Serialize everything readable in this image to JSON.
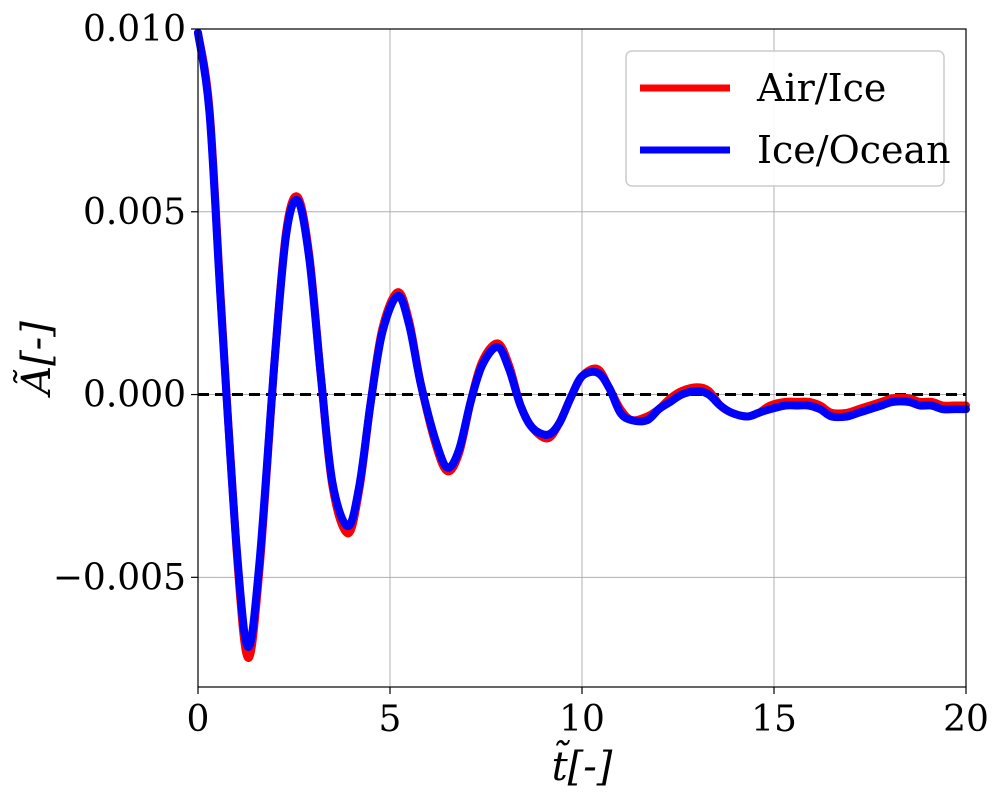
{
  "chart_data": {
    "type": "line",
    "xlabel": "t̃[-]",
    "ylabel": "Ã[-]",
    "xlim": [
      0,
      20
    ],
    "ylim": [
      -0.008,
      0.01
    ],
    "xticks": [
      0,
      5,
      10,
      15,
      20
    ],
    "yticks": [
      -0.005,
      0.0,
      0.005,
      0.01
    ],
    "xtick_labels": [
      "0",
      "5",
      "10",
      "15",
      "20"
    ],
    "ytick_labels": [
      "−0.005",
      "0.000",
      "0.005",
      "0.010"
    ],
    "grid": true,
    "legend_position": "top-right",
    "reference_line": {
      "y": 0.0,
      "style": "dashed",
      "color": "#000000"
    },
    "series": [
      {
        "name": "Air/Ice",
        "color": "#ff0000",
        "x": [
          0.0,
          0.3,
          0.6,
          1.0,
          1.3,
          1.6,
          2.0,
          2.3,
          2.6,
          2.9,
          3.2,
          3.5,
          3.9,
          4.2,
          4.5,
          4.8,
          5.2,
          5.5,
          5.8,
          6.2,
          6.5,
          6.8,
          7.1,
          7.4,
          7.8,
          8.1,
          8.4,
          8.7,
          9.1,
          9.4,
          9.7,
          10.0,
          10.4,
          10.7,
          11.0,
          11.3,
          11.7,
          12.0,
          12.3,
          12.6,
          13.0,
          13.3,
          13.6,
          13.9,
          14.3,
          14.6,
          14.9,
          15.3,
          15.6,
          15.9,
          16.2,
          16.5,
          16.9,
          17.2,
          17.5,
          17.8,
          18.1,
          18.5,
          18.8,
          19.1,
          19.4,
          19.7,
          20.0
        ],
        "y": [
          0.0099,
          0.0078,
          0.0025,
          -0.0042,
          -0.0072,
          -0.0048,
          0.001,
          0.0045,
          0.0054,
          0.0038,
          0.0005,
          -0.0025,
          -0.0038,
          -0.0026,
          -0.0002,
          0.0018,
          0.0028,
          0.002,
          0.0003,
          -0.0014,
          -0.0021,
          -0.0016,
          -0.0002,
          0.0009,
          0.0014,
          0.0008,
          -0.0003,
          -0.0009,
          -0.0012,
          -0.0008,
          -0.0001,
          0.0005,
          0.0007,
          0.0002,
          -0.0004,
          -0.0007,
          -0.0006,
          -0.0004,
          -0.0001,
          0.0001,
          0.0002,
          0.0001,
          -0.0003,
          -0.0005,
          -0.0006,
          -0.0005,
          -0.0003,
          -0.0002,
          -0.0002,
          -0.0002,
          -0.0003,
          -0.0005,
          -0.0005,
          -0.0004,
          -0.0003,
          -0.0002,
          -0.0001,
          -0.0001,
          -0.0002,
          -0.0002,
          -0.0003,
          -0.0003,
          -0.0003
        ]
      },
      {
        "name": "Ice/Ocean",
        "color": "#0000ff",
        "x": [
          0.0,
          0.3,
          0.6,
          1.0,
          1.3,
          1.6,
          2.0,
          2.3,
          2.6,
          2.9,
          3.2,
          3.5,
          3.9,
          4.2,
          4.5,
          4.8,
          5.2,
          5.5,
          5.8,
          6.2,
          6.5,
          6.8,
          7.1,
          7.4,
          7.8,
          8.1,
          8.4,
          8.7,
          9.1,
          9.4,
          9.7,
          10.0,
          10.4,
          10.7,
          11.0,
          11.3,
          11.7,
          12.0,
          12.3,
          12.6,
          13.0,
          13.3,
          13.6,
          13.9,
          14.3,
          14.6,
          14.9,
          15.3,
          15.6,
          15.9,
          16.2,
          16.5,
          16.9,
          17.2,
          17.5,
          17.8,
          18.1,
          18.5,
          18.8,
          19.1,
          19.4,
          19.7,
          20.0
        ],
        "y": [
          0.0099,
          0.0077,
          0.0024,
          -0.0041,
          -0.0069,
          -0.0046,
          0.001,
          0.0044,
          0.0053,
          0.0037,
          0.0005,
          -0.0024,
          -0.0036,
          -0.0025,
          -0.0002,
          0.0017,
          0.0027,
          0.0019,
          0.0003,
          -0.0013,
          -0.002,
          -0.0015,
          -0.0002,
          0.0008,
          0.0013,
          0.0007,
          -0.0003,
          -0.0009,
          -0.0011,
          -0.0008,
          -0.0001,
          0.0005,
          0.0006,
          0.0002,
          -0.0005,
          -0.0007,
          -0.0007,
          -0.0004,
          -0.0002,
          0.0,
          0.0001,
          0.0,
          -0.0003,
          -0.0005,
          -0.0006,
          -0.0005,
          -0.0004,
          -0.0003,
          -0.0003,
          -0.0003,
          -0.0004,
          -0.0006,
          -0.0006,
          -0.0005,
          -0.0004,
          -0.0003,
          -0.0002,
          -0.0002,
          -0.0003,
          -0.0003,
          -0.0004,
          -0.0004,
          -0.0004
        ]
      }
    ]
  }
}
